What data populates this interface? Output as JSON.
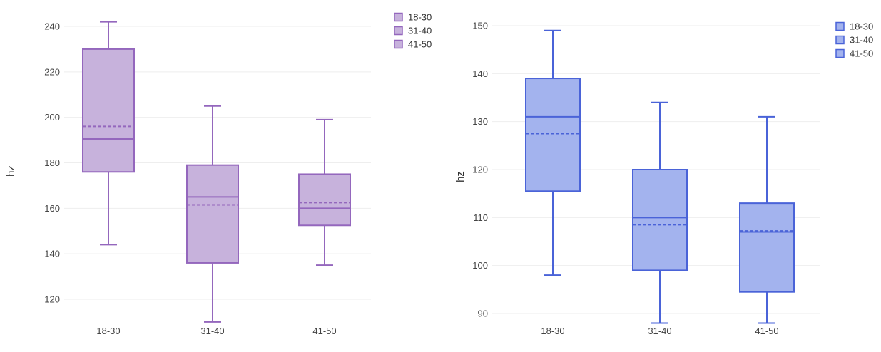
{
  "chart_data": [
    {
      "type": "box",
      "ylabel": "hz",
      "categories": [
        "18-30",
        "31-40",
        "41-50"
      ],
      "yticks": [
        120,
        140,
        160,
        180,
        200,
        220,
        240
      ],
      "ylim": [
        110,
        242
      ],
      "color": "#9467bd",
      "fill": "#c7b2dc",
      "legend": [
        "18-30",
        "31-40",
        "41-50"
      ],
      "legend_position": "top-right",
      "boxes": [
        {
          "name": "18-30",
          "min": 144,
          "q1": 176,
          "median": 190.5,
          "mean": 196,
          "q3": 230,
          "max": 242
        },
        {
          "name": "31-40",
          "min": 110,
          "q1": 136,
          "median": 165,
          "mean": 161.5,
          "q3": 179,
          "max": 205
        },
        {
          "name": "41-50",
          "min": 135,
          "q1": 152.5,
          "median": 160,
          "mean": 162.5,
          "q3": 175,
          "max": 199
        }
      ]
    },
    {
      "type": "box",
      "ylabel": "hz",
      "categories": [
        "18-30",
        "31-40",
        "41-50"
      ],
      "yticks": [
        90,
        100,
        110,
        120,
        130,
        140,
        150
      ],
      "ylim": [
        88,
        150
      ],
      "color": "#4a63d8",
      "fill": "#a3b3ee",
      "legend": [
        "18-30",
        "31-40",
        "41-50"
      ],
      "legend_position": "top-right",
      "boxes": [
        {
          "name": "18-30",
          "min": 98,
          "q1": 115.5,
          "median": 131,
          "mean": 127.5,
          "q3": 139,
          "max": 149
        },
        {
          "name": "31-40",
          "min": 88,
          "q1": 99,
          "median": 110,
          "mean": 108.5,
          "q3": 120,
          "max": 134
        },
        {
          "name": "41-50",
          "min": 88,
          "q1": 94.5,
          "median": 107,
          "mean": 107.2,
          "q3": 113,
          "max": 131
        }
      ]
    }
  ]
}
